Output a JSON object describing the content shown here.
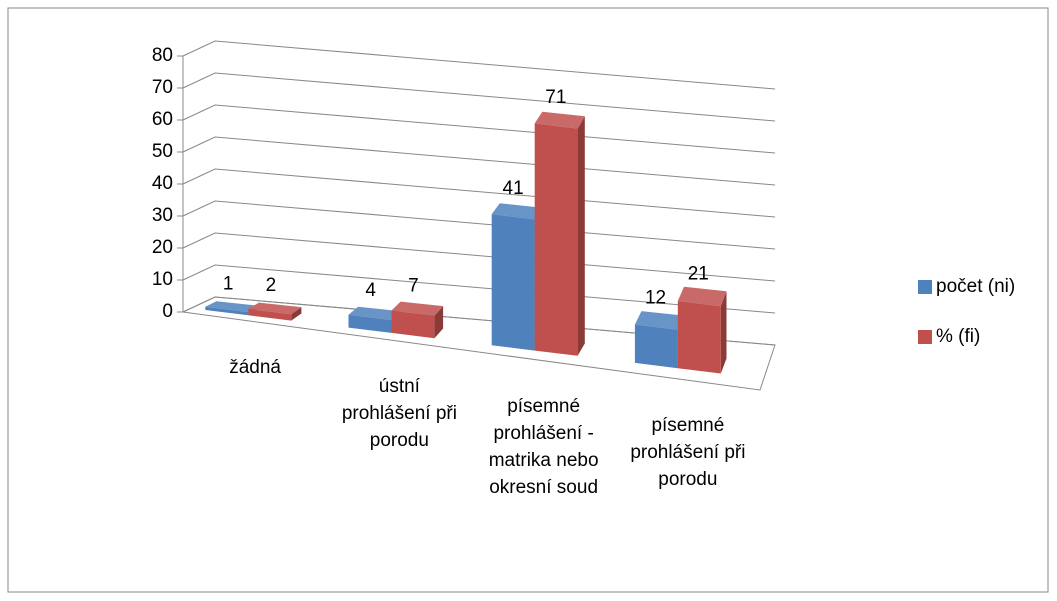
{
  "chart_data": {
    "type": "bar3d",
    "categories": [
      "žádná",
      "ústní prohlášení při porodu",
      "písemné prohlášení - matrika nebo okresní soud",
      "písemné prohlášení při porodu"
    ],
    "series": [
      {
        "name": "počet (ni)",
        "color": "#4f81bd",
        "values": [
          1,
          4,
          41,
          12
        ]
      },
      {
        "name": "% (fi)",
        "color": "#c0504d",
        "values": [
          2,
          7,
          71,
          21
        ]
      }
    ],
    "ylim": [
      0,
      80
    ],
    "yticks": [
      0,
      10,
      20,
      30,
      40,
      50,
      60,
      70,
      80
    ],
    "grid": true,
    "legend": "right"
  }
}
